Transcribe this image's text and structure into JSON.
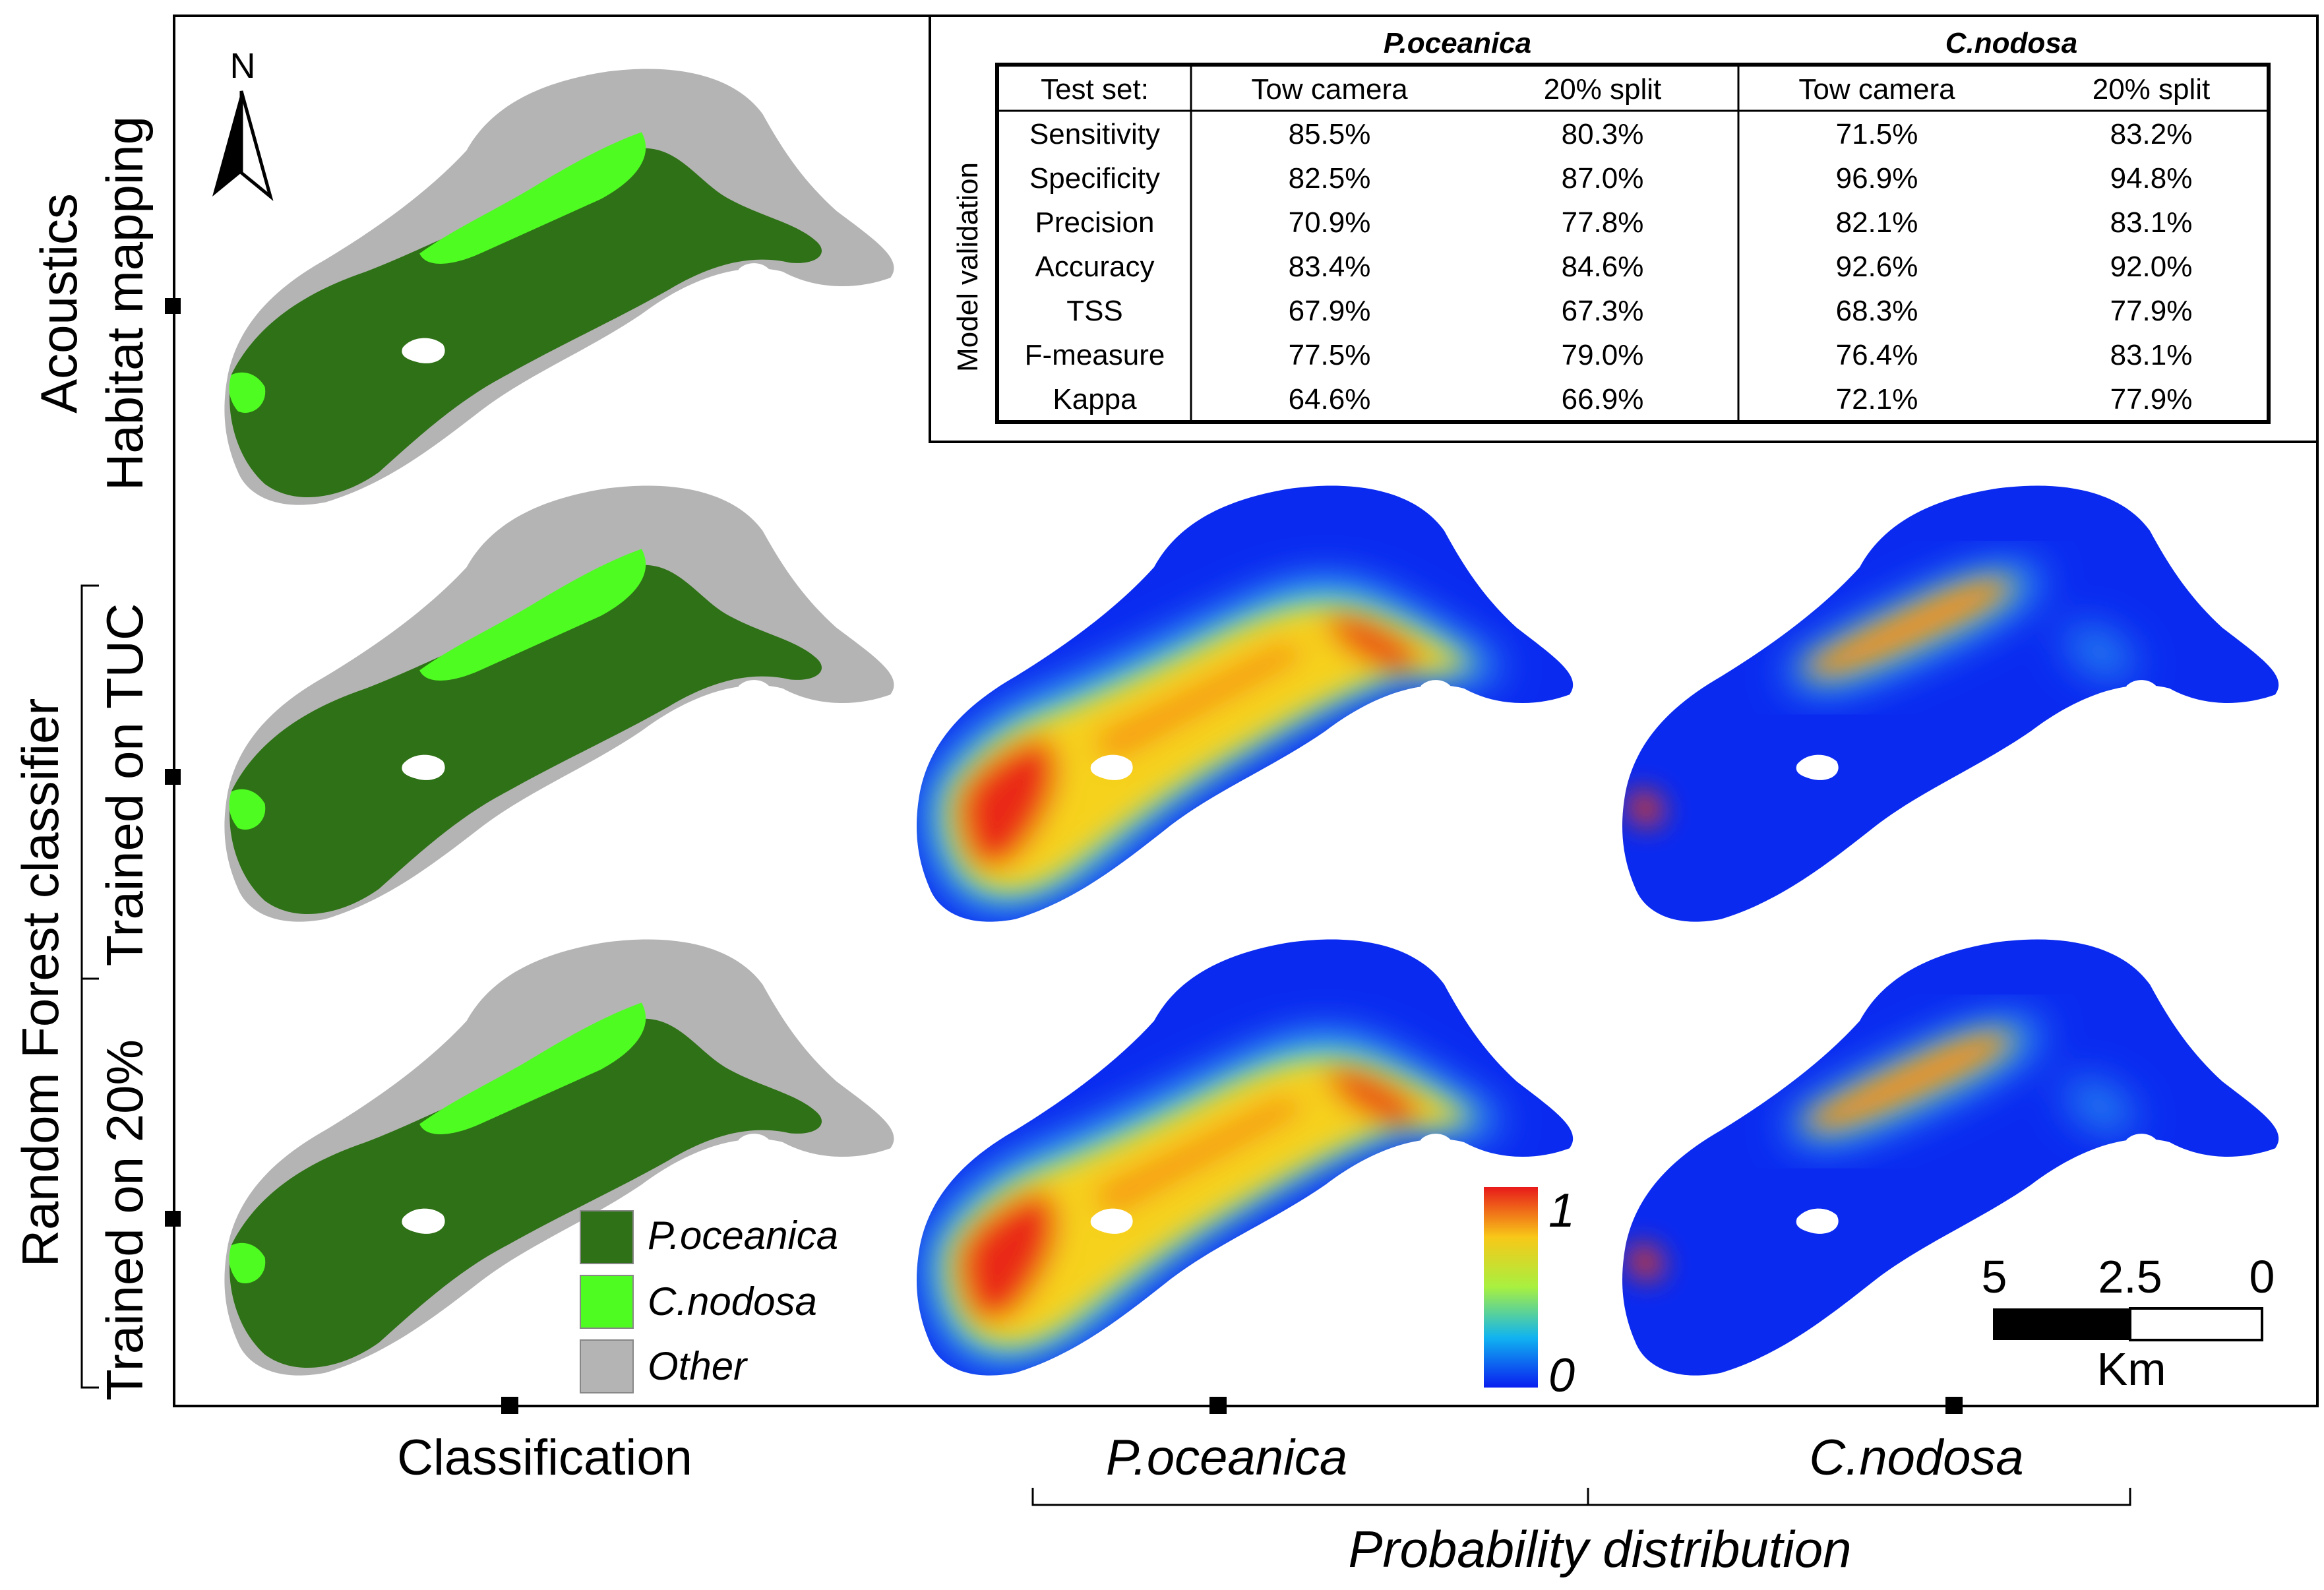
{
  "row_labels": {
    "acoustics": "Acoustics",
    "habitat_mapping": "Habitat mapping",
    "random_forest": "Random Forest classifier",
    "trained_tuc": "Trained on TUC",
    "trained_20": "Trained on 20%"
  },
  "column_labels": {
    "classification": "Classification",
    "p_oceanica": "P.oceanica",
    "c_nodosa": "C.nodosa",
    "probability": "Probability distribution"
  },
  "north_label": "N",
  "legend": [
    {
      "label": "P.oceanica",
      "color": "#2e7116"
    },
    {
      "label": "C.nodosa",
      "color": "#4efc22"
    },
    {
      "label": "Other",
      "color": "#b4b4b4"
    }
  ],
  "colorbar": {
    "max_label": "1",
    "min_label": "0"
  },
  "scalebar": {
    "ticks": [
      "5",
      "2.5",
      "0"
    ],
    "unit": "Km"
  },
  "colors": {
    "p_oceanica": "#2e7116",
    "c_nodosa": "#4efc22",
    "other": "#b4b4b4",
    "prob_low": "#0a2af0",
    "prob_high": "#e8201a"
  },
  "table": {
    "group_headers": [
      "P.oceanica",
      "C.nodosa"
    ],
    "side_label": "Model validation",
    "test_set_label": "Test set:",
    "columns": [
      "Tow camera",
      "20% split",
      "Tow camera",
      "20% split"
    ],
    "rows": [
      {
        "metric": "Sensitivity",
        "values": [
          "85.5%",
          "80.3%",
          "71.5%",
          "83.2%"
        ]
      },
      {
        "metric": "Specificity",
        "values": [
          "82.5%",
          "87.0%",
          "96.9%",
          "94.8%"
        ]
      },
      {
        "metric": "Precision",
        "values": [
          "70.9%",
          "77.8%",
          "82.1%",
          "83.1%"
        ]
      },
      {
        "metric": "Accuracy",
        "values": [
          "83.4%",
          "84.6%",
          "92.6%",
          "92.0%"
        ]
      },
      {
        "metric": "TSS",
        "values": [
          "67.9%",
          "67.3%",
          "68.3%",
          "77.9%"
        ]
      },
      {
        "metric": "F-measure",
        "values": [
          "77.5%",
          "79.0%",
          "76.4%",
          "83.1%"
        ]
      },
      {
        "metric": "Kappa",
        "values": [
          "64.6%",
          "66.9%",
          "72.1%",
          "77.9%"
        ]
      }
    ]
  }
}
